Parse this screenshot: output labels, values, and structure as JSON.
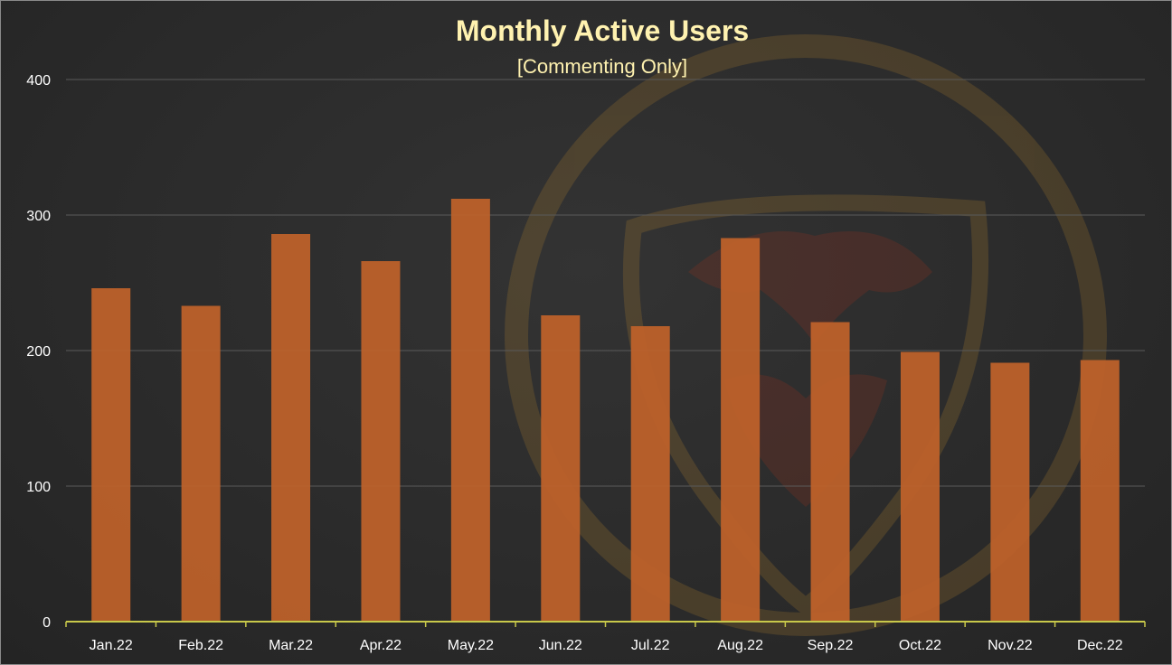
{
  "colors": {
    "background": "#2b2b2b",
    "bar": "#c0622a",
    "title": "#fff2b0",
    "gridline": "#5a5a5a",
    "axis": "#c8c84a",
    "tick_label": "#ffffff",
    "watermark": "#b8862e"
  },
  "watermark": {
    "icon": "lion-head-shield-icon"
  },
  "chart_data": {
    "type": "bar",
    "title": "Monthly Active Users",
    "subtitle": "[Commenting Only]",
    "xlabel": "",
    "ylabel": "",
    "categories": [
      "Jan.22",
      "Feb.22",
      "Mar.22",
      "Apr.22",
      "May.22",
      "Jun.22",
      "Jul.22",
      "Aug.22",
      "Sep.22",
      "Oct.22",
      "Nov.22",
      "Dec.22"
    ],
    "values": [
      246,
      233,
      286,
      266,
      312,
      226,
      218,
      283,
      221,
      199,
      191,
      193
    ],
    "ylim": [
      0,
      400
    ],
    "yticks": [
      "0",
      "100",
      "200",
      "300",
      "400"
    ],
    "grid": true,
    "legend": "none"
  }
}
